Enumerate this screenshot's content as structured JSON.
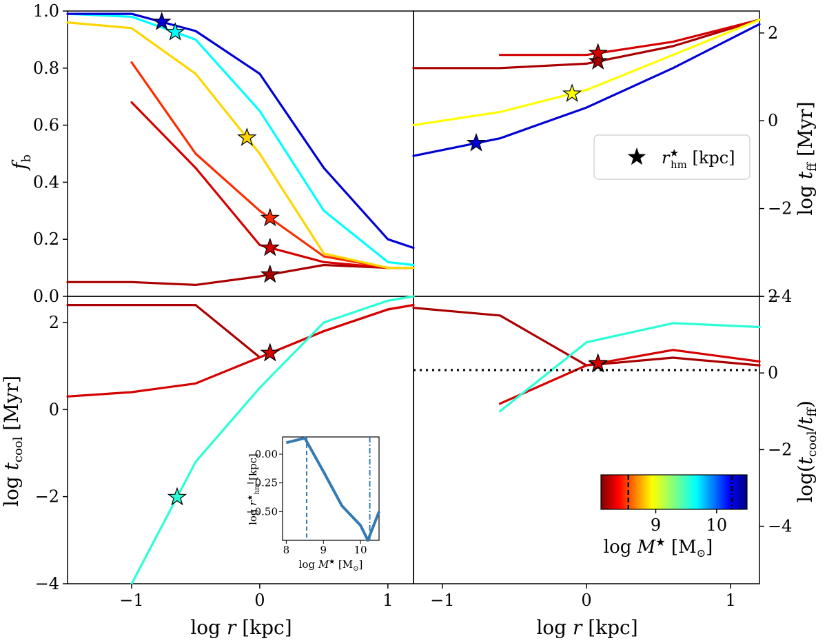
{
  "figure": {
    "panels": {
      "top_left": {
        "ylabel": "fb",
        "yticks": [
          "0.0",
          "0.2",
          "0.4",
          "0.6",
          "0.8",
          "1.0"
        ],
        "ylim": [
          0,
          1
        ],
        "xlim": [
          -1.5,
          1.2
        ]
      },
      "top_right": {
        "ylabel": "log tff [Myr]",
        "yticks": [
          "−4",
          "−2",
          "0",
          "2"
        ],
        "ylim": [
          -4,
          2.5
        ],
        "xlim": [
          -1.2,
          1.2
        ],
        "legend": {
          "label": "r★hm [kpc]",
          "placement": "center-right"
        }
      },
      "bottom_left": {
        "ylabel": "log tcool [Myr]",
        "xlabel": "log r [kpc]",
        "xticks": [
          "−1",
          "0",
          "1"
        ],
        "yticks": [
          "−4",
          "−2",
          "0",
          "2"
        ],
        "ylim": [
          -4,
          2.6
        ],
        "xlim": [
          -1.5,
          1.2
        ]
      },
      "bottom_right": {
        "ylabel": "log(tcool/tff)",
        "xlabel": "log r [kpc]",
        "xticks": [
          "−1",
          "0",
          "1"
        ],
        "yticks": [
          "−4",
          "−2",
          "0",
          "2",
          "4"
        ],
        "ylim": [
          -5.5,
          2
        ],
        "xlim": [
          -1.2,
          1.2
        ],
        "reference_line": 0
      }
    },
    "inset": {
      "xlabel": "log M★ [M⊙]",
      "ylabel": "log r★hm [kpc]",
      "xticks": [
        "8",
        "9",
        "10"
      ],
      "yticks": [
        "0.00",
        "−0.25",
        "−0.50"
      ],
      "xlim": [
        7.9,
        10.5
      ],
      "ylim": [
        -0.75,
        0.15
      ],
      "vlines": [
        8.55,
        10.25
      ]
    },
    "colorbar": {
      "label": "log M★ [M⊙]",
      "ticks": [
        "9",
        "10"
      ],
      "range": [
        8.1,
        10.5
      ],
      "markers": [
        8.55,
        10.25
      ],
      "colormap": "jet_r"
    }
  },
  "chart_data": [
    {
      "type": "line",
      "panel": "top_left",
      "ylabel": "fb",
      "xlabel": "log r [kpc]",
      "x": [
        -1.5,
        -1.0,
        -0.5,
        0.0,
        0.5,
        1.0,
        1.2
      ],
      "series": [
        {
          "name": "",
          "mass": 8.2,
          "values": [
            0.05,
            0.05,
            0.04,
            0.07,
            0.11,
            0.1,
            0.1
          ]
        },
        {
          "name": "",
          "mass": 8.3,
          "values": [
            null,
            0.68,
            0.45,
            0.18,
            0.12,
            0.1,
            0.1
          ]
        },
        {
          "name": "",
          "mass": 8.5,
          "values": [
            null,
            0.82,
            0.5,
            0.3,
            0.14,
            0.1,
            0.1
          ]
        },
        {
          "name": "",
          "mass": 8.9,
          "values": [
            0.96,
            0.94,
            0.78,
            0.5,
            0.15,
            0.1,
            0.1
          ]
        },
        {
          "name": "",
          "mass": 9.6,
          "values": [
            0.99,
            0.98,
            0.9,
            0.65,
            0.3,
            0.12,
            0.11
          ]
        },
        {
          "name": "",
          "mass": 10.3,
          "values": [
            0.99,
            0.99,
            0.93,
            0.78,
            0.45,
            0.2,
            0.17
          ]
        }
      ]
    },
    {
      "type": "line",
      "panel": "top_right",
      "ylabel": "log tff [Myr]",
      "x": [
        -1.2,
        -0.6,
        0.0,
        0.6,
        1.2
      ],
      "series": [
        {
          "name": "",
          "mass": 8.2,
          "values": [
            1.2,
            1.2,
            1.3,
            1.7,
            2.3
          ]
        },
        {
          "name": "",
          "mass": 8.3,
          "values": [
            null,
            1.5,
            1.5,
            1.8,
            2.3
          ]
        },
        {
          "name": "",
          "mass": 9.0,
          "values": [
            -0.1,
            0.2,
            0.7,
            1.5,
            2.3
          ]
        },
        {
          "name": "",
          "mass": 10.3,
          "values": [
            -0.8,
            -0.4,
            0.3,
            1.2,
            2.2
          ]
        }
      ]
    },
    {
      "type": "line",
      "panel": "bottom_left",
      "ylabel": "log tcool [Myr]",
      "xlabel": "log r [kpc]",
      "x": [
        -1.5,
        -1.0,
        -0.5,
        0.0,
        0.5,
        1.0,
        1.2
      ],
      "series": [
        {
          "name": "",
          "mass": 8.2,
          "values": [
            2.4,
            2.4,
            2.4,
            1.2,
            1.8,
            2.3,
            2.4
          ]
        },
        {
          "name": "",
          "mass": 8.3,
          "values": [
            0.3,
            0.4,
            0.6,
            1.2,
            1.8,
            2.3,
            2.4
          ]
        },
        {
          "name": "",
          "mass": 9.5,
          "values": [
            null,
            -4.0,
            -1.2,
            0.5,
            2.0,
            2.5,
            2.6
          ]
        }
      ]
    },
    {
      "type": "line",
      "panel": "bottom_right",
      "ylabel": "log(tcool/tff)",
      "xlabel": "log r [kpc]",
      "x": [
        -1.2,
        -0.6,
        0.0,
        0.6,
        1.2
      ],
      "series": [
        {
          "name": "",
          "mass": 8.2,
          "values": [
            1.7,
            1.5,
            0.2,
            0.4,
            0.2
          ]
        },
        {
          "name": "",
          "mass": 8.3,
          "values": [
            null,
            -0.8,
            0.2,
            0.6,
            0.3
          ]
        },
        {
          "name": "",
          "mass": 9.5,
          "values": [
            null,
            -1.0,
            0.8,
            1.3,
            1.2
          ]
        }
      ]
    },
    {
      "type": "line",
      "panel": "inset",
      "xlabel": "log M★ [M⊙]",
      "ylabel": "log r★hm [kpc]",
      "x": [
        8.0,
        8.5,
        9.0,
        9.5,
        10.0,
        10.2,
        10.5
      ],
      "series": [
        {
          "name": "",
          "values": [
            0.1,
            0.14,
            -0.15,
            -0.45,
            -0.62,
            -0.75,
            -0.5
          ]
        }
      ]
    }
  ]
}
